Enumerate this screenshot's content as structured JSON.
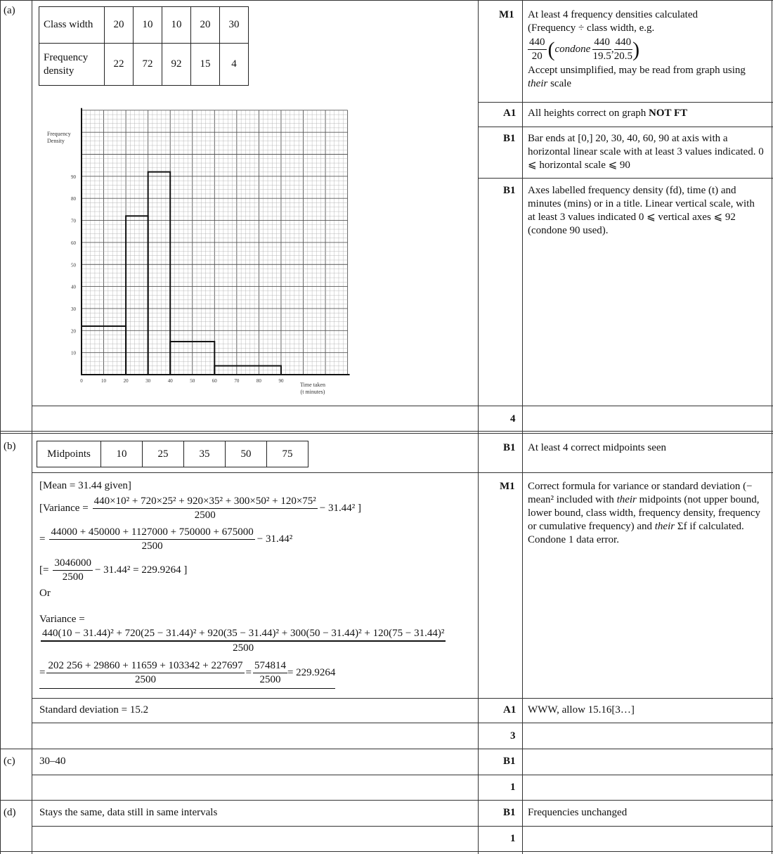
{
  "parts": {
    "a": "(a)",
    "b": "(b)",
    "c": "(c)",
    "d": "(d)"
  },
  "a": {
    "table": {
      "class_width_label": "Class width",
      "class_widths": [
        "20",
        "10",
        "10",
        "20",
        "30"
      ],
      "fd_label": "Frequency density",
      "fds": [
        "22",
        "72",
        "92",
        "15",
        "4"
      ]
    },
    "marks": [
      {
        "code": "M1",
        "text_1": "At least 4 frequency densities calculated",
        "text_2": "(Frequency ÷ class width, e.g.",
        "f1n": "440",
        "f1d": "20",
        "condone": "condone",
        "f2n": "440",
        "f2d": "19.5",
        "f3n": "440",
        "f3d": "20.5",
        "text_3": "Accept unsimplified, may be read from graph using",
        "text_4_i": "their",
        "text_4": " scale"
      },
      {
        "code": "A1",
        "text": "All heights correct on graph ",
        "bold": "NOT FT"
      },
      {
        "code": "B1",
        "text": "Bar ends at [0,] 20, 30, 40, 60, 90 at axis with a horizontal linear scale with at least 3 values indicated. 0 ⩽ horizontal scale ⩽ 90"
      },
      {
        "code": "B1",
        "text": "Axes labelled frequency density (fd), time (t) and minutes (mins) or in a title. Linear vertical scale, with at least 3 values indicated 0 ⩽ vertical axes ⩽ 92 (condone 90 used)."
      }
    ],
    "total": "4"
  },
  "chart_data": {
    "type": "bar",
    "histogram": true,
    "bins": [
      [
        0,
        20
      ],
      [
        20,
        30
      ],
      [
        30,
        40
      ],
      [
        40,
        60
      ],
      [
        60,
        90
      ]
    ],
    "values": [
      22,
      72,
      92,
      15,
      4
    ],
    "xlabel": "Time taken (t minutes)",
    "ylabel": "Frequency Density",
    "xticks": [
      "0",
      "10",
      "20",
      "30",
      "40",
      "50",
      "60",
      "70",
      "80",
      "90"
    ],
    "yticks": [
      "10",
      "20",
      "30",
      "40",
      "50",
      "60",
      "70",
      "80",
      "90"
    ],
    "xlim": [
      0,
      120
    ],
    "ylim": [
      0,
      120
    ],
    "grid": true
  },
  "b": {
    "midpoints_label": "Midpoints",
    "midpoints": [
      "10",
      "25",
      "35",
      "50",
      "75"
    ],
    "mean": "[Mean = 31.44 given]",
    "var_prefix": "[Variance =",
    "var_num": "440×10² + 720×25² + 920×35² + 300×50² + 120×75²",
    "den": "2500",
    "var_suffix": "− 31.44² ]",
    "eq": "=",
    "line2_num": "44000 + 450000 + 1127000 + 750000 + 675000",
    "line2_suffix": "− 31.44²",
    "line3_prefix": "[=",
    "line3_num": "3046000",
    "line3_suffix": "− 31.44²  = 229.9264 ]",
    "or": "Or",
    "variance_label": "Variance =",
    "alt_num": "440(10 − 31.44)² + 720(25 − 31.44)² + 920(35 − 31.44)² + 300(50 − 31.44)² + 120(75 − 31.44)²",
    "alt2_num": "202 256 + 29860 + 11659 + 103342 + 227697",
    "alt3_num": "574814",
    "alt_result": "= 229.9264",
    "sd": "Standard deviation = 15.2",
    "marks": [
      {
        "code": "B1",
        "text": "At least 4 correct midpoints seen"
      },
      {
        "code": "M1",
        "text_1": "Correct formula for variance or standard deviation (− mean² included with ",
        "i1": "their",
        "text_2": " midpoints (not upper bound, lower bound, class width, frequency density, frequency or cumulative frequency) and ",
        "i2": "their",
        "text_3": " Σf if calculated.",
        "text_4": "Condone 1 data error."
      },
      {
        "code": "A1",
        "text": "WWW, allow 15.16[3…]"
      }
    ],
    "total": "3"
  },
  "c": {
    "answer": "30–40",
    "code": "B1",
    "total": "1"
  },
  "d": {
    "answer": "Stays the same, data still in same intervals",
    "code": "B1",
    "note": "Frequencies unchanged",
    "total": "1"
  }
}
